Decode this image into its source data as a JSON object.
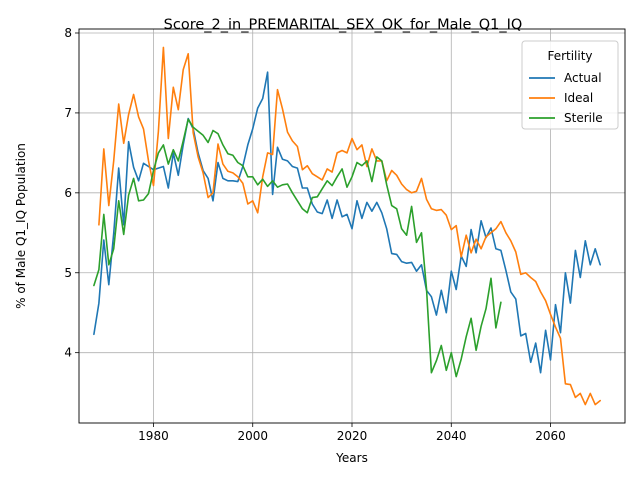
{
  "chart_data": {
    "type": "line",
    "title": "Score_2_in_PREMARITAL_SEX_OK_for_Male_Q1_IQ",
    "xlabel": "Years",
    "ylabel": "% of Male Q1_IQ Population",
    "xlim": [
      1965,
      2075
    ],
    "ylim": [
      3.12,
      8.05
    ],
    "xticks": [
      1980,
      2000,
      2020,
      2040,
      2060
    ],
    "yticks": [
      4,
      5,
      6,
      7,
      8
    ],
    "xtick_labels": [
      "1980",
      "2000",
      "2020",
      "2040",
      "2060"
    ],
    "ytick_labels": [
      "4",
      "5",
      "6",
      "7",
      "8"
    ],
    "grid": true,
    "legend": {
      "title": "Fertility",
      "placement": "top-right"
    },
    "series": [
      {
        "name": "Actual",
        "color": "#1f77b4",
        "points": [
          [
            1968,
            4.23
          ],
          [
            1969,
            4.62
          ],
          [
            1970,
            5.41
          ],
          [
            1971,
            4.85
          ],
          [
            1972,
            5.49
          ],
          [
            1973,
            6.31
          ],
          [
            1974,
            5.6
          ],
          [
            1975,
            6.64
          ],
          [
            1976,
            6.32
          ],
          [
            1977,
            6.15
          ],
          [
            1978,
            6.37
          ],
          [
            1979,
            6.33
          ],
          [
            1980,
            6.29
          ],
          [
            1981,
            6.31
          ],
          [
            1982,
            6.33
          ],
          [
            1983,
            6.06
          ],
          [
            1984,
            6.5
          ],
          [
            1985,
            6.22
          ],
          [
            1986,
            6.6
          ],
          [
            1987,
            6.93
          ],
          [
            1988,
            6.8
          ],
          [
            1989,
            6.5
          ],
          [
            1990,
            6.28
          ],
          [
            1991,
            6.18
          ],
          [
            1992,
            5.9
          ],
          [
            1993,
            6.38
          ],
          [
            1994,
            6.18
          ],
          [
            1995,
            6.15
          ],
          [
            1996,
            6.15
          ],
          [
            1997,
            6.14
          ],
          [
            1998,
            6.33
          ],
          [
            1999,
            6.6
          ],
          [
            2000,
            6.8
          ],
          [
            2001,
            7.06
          ],
          [
            2002,
            7.18
          ],
          [
            2003,
            7.51
          ],
          [
            2004,
            5.98
          ],
          [
            2005,
            6.57
          ],
          [
            2006,
            6.42
          ],
          [
            2007,
            6.4
          ],
          [
            2008,
            6.33
          ],
          [
            2009,
            6.31
          ],
          [
            2010,
            6.06
          ],
          [
            2011,
            6.06
          ],
          [
            2012,
            5.86
          ],
          [
            2013,
            5.76
          ],
          [
            2014,
            5.74
          ],
          [
            2015,
            5.91
          ],
          [
            2016,
            5.68
          ],
          [
            2017,
            5.91
          ],
          [
            2018,
            5.7
          ],
          [
            2019,
            5.73
          ],
          [
            2020,
            5.55
          ],
          [
            2021,
            5.9
          ],
          [
            2022,
            5.68
          ],
          [
            2023,
            5.88
          ],
          [
            2024,
            5.77
          ],
          [
            2025,
            5.88
          ],
          [
            2026,
            5.75
          ],
          [
            2027,
            5.55
          ],
          [
            2028,
            5.24
          ],
          [
            2029,
            5.23
          ],
          [
            2030,
            5.14
          ],
          [
            2031,
            5.12
          ],
          [
            2032,
            5.13
          ],
          [
            2033,
            5.02
          ],
          [
            2034,
            5.1
          ],
          [
            2035,
            4.78
          ],
          [
            2036,
            4.7
          ],
          [
            2037,
            4.47
          ],
          [
            2038,
            4.78
          ],
          [
            2039,
            4.5
          ],
          [
            2040,
            5.02
          ],
          [
            2041,
            4.79
          ],
          [
            2042,
            5.21
          ],
          [
            2043,
            5.08
          ],
          [
            2044,
            5.54
          ],
          [
            2045,
            5.25
          ],
          [
            2046,
            5.65
          ],
          [
            2047,
            5.44
          ],
          [
            2048,
            5.56
          ],
          [
            2049,
            5.3
          ],
          [
            2050,
            5.28
          ],
          [
            2051,
            5.03
          ],
          [
            2052,
            4.76
          ],
          [
            2053,
            4.67
          ],
          [
            2054,
            4.21
          ],
          [
            2055,
            4.24
          ],
          [
            2056,
            3.88
          ],
          [
            2057,
            4.12
          ],
          [
            2058,
            3.75
          ],
          [
            2059,
            4.28
          ],
          [
            2060,
            3.91
          ],
          [
            2061,
            4.6
          ],
          [
            2062,
            4.25
          ],
          [
            2063,
            5.0
          ],
          [
            2064,
            4.62
          ],
          [
            2065,
            5.28
          ],
          [
            2066,
            4.94
          ],
          [
            2067,
            5.4
          ],
          [
            2068,
            5.1
          ],
          [
            2069,
            5.3
          ],
          [
            2070,
            5.1
          ]
        ]
      },
      {
        "name": "Ideal",
        "color": "#ff7f0e",
        "points": [
          [
            1969,
            5.6
          ],
          [
            1970,
            6.55
          ],
          [
            1971,
            5.84
          ],
          [
            1972,
            6.4
          ],
          [
            1973,
            7.11
          ],
          [
            1974,
            6.62
          ],
          [
            1975,
            6.98
          ],
          [
            1976,
            7.23
          ],
          [
            1977,
            6.95
          ],
          [
            1978,
            6.8
          ],
          [
            1979,
            6.4
          ],
          [
            1980,
            6.09
          ],
          [
            1981,
            6.77
          ],
          [
            1982,
            7.82
          ],
          [
            1983,
            6.68
          ],
          [
            1984,
            7.32
          ],
          [
            1985,
            7.04
          ],
          [
            1986,
            7.54
          ],
          [
            1987,
            7.74
          ],
          [
            1988,
            6.75
          ],
          [
            1989,
            6.45
          ],
          [
            1990,
            6.25
          ],
          [
            1991,
            5.94
          ],
          [
            1992,
            6.0
          ],
          [
            1993,
            6.61
          ],
          [
            1994,
            6.36
          ],
          [
            1995,
            6.27
          ],
          [
            1996,
            6.25
          ],
          [
            1997,
            6.2
          ],
          [
            1998,
            6.12
          ],
          [
            1999,
            5.86
          ],
          [
            2000,
            5.9
          ],
          [
            2001,
            5.75
          ],
          [
            2002,
            6.2
          ],
          [
            2003,
            6.5
          ],
          [
            2004,
            6.48
          ],
          [
            2005,
            7.29
          ],
          [
            2006,
            7.05
          ],
          [
            2007,
            6.76
          ],
          [
            2008,
            6.65
          ],
          [
            2009,
            6.58
          ],
          [
            2010,
            6.29
          ],
          [
            2011,
            6.34
          ],
          [
            2012,
            6.24
          ],
          [
            2013,
            6.2
          ],
          [
            2014,
            6.16
          ],
          [
            2015,
            6.3
          ],
          [
            2016,
            6.26
          ],
          [
            2017,
            6.5
          ],
          [
            2018,
            6.53
          ],
          [
            2019,
            6.5
          ],
          [
            2020,
            6.68
          ],
          [
            2021,
            6.54
          ],
          [
            2022,
            6.6
          ],
          [
            2023,
            6.33
          ],
          [
            2024,
            6.55
          ],
          [
            2025,
            6.4
          ],
          [
            2026,
            6.4
          ],
          [
            2027,
            6.15
          ],
          [
            2028,
            6.28
          ],
          [
            2029,
            6.22
          ],
          [
            2030,
            6.11
          ],
          [
            2031,
            6.04
          ],
          [
            2032,
            6.0
          ],
          [
            2033,
            6.02
          ],
          [
            2034,
            6.18
          ],
          [
            2035,
            5.92
          ],
          [
            2036,
            5.8
          ],
          [
            2037,
            5.78
          ],
          [
            2038,
            5.79
          ],
          [
            2039,
            5.72
          ],
          [
            2040,
            5.54
          ],
          [
            2041,
            5.59
          ],
          [
            2042,
            5.2
          ],
          [
            2043,
            5.47
          ],
          [
            2044,
            5.25
          ],
          [
            2045,
            5.42
          ],
          [
            2046,
            5.3
          ],
          [
            2047,
            5.45
          ],
          [
            2048,
            5.5
          ],
          [
            2049,
            5.55
          ],
          [
            2050,
            5.64
          ],
          [
            2051,
            5.5
          ],
          [
            2052,
            5.4
          ],
          [
            2053,
            5.26
          ],
          [
            2054,
            4.98
          ],
          [
            2055,
            5.0
          ],
          [
            2056,
            4.94
          ],
          [
            2057,
            4.89
          ],
          [
            2058,
            4.76
          ],
          [
            2059,
            4.65
          ],
          [
            2060,
            4.48
          ],
          [
            2061,
            4.32
          ],
          [
            2062,
            4.18
          ],
          [
            2063,
            3.61
          ],
          [
            2064,
            3.6
          ],
          [
            2065,
            3.44
          ],
          [
            2066,
            3.49
          ],
          [
            2067,
            3.35
          ],
          [
            2068,
            3.49
          ],
          [
            2069,
            3.35
          ],
          [
            2070,
            3.4
          ]
        ]
      },
      {
        "name": "Sterile",
        "color": "#2ca02c",
        "points": [
          [
            1968,
            4.84
          ],
          [
            1969,
            5.04
          ],
          [
            1970,
            5.73
          ],
          [
            1971,
            5.1
          ],
          [
            1972,
            5.3
          ],
          [
            1973,
            5.9
          ],
          [
            1974,
            5.48
          ],
          [
            1975,
            5.97
          ],
          [
            1976,
            6.18
          ],
          [
            1977,
            5.9
          ],
          [
            1978,
            5.91
          ],
          [
            1979,
            5.99
          ],
          [
            1980,
            6.28
          ],
          [
            1981,
            6.5
          ],
          [
            1982,
            6.6
          ],
          [
            1983,
            6.36
          ],
          [
            1984,
            6.54
          ],
          [
            1985,
            6.4
          ],
          [
            1986,
            6.65
          ],
          [
            1987,
            6.92
          ],
          [
            1988,
            6.82
          ],
          [
            1989,
            6.77
          ],
          [
            1990,
            6.72
          ],
          [
            1991,
            6.63
          ],
          [
            1992,
            6.78
          ],
          [
            1993,
            6.74
          ],
          [
            1994,
            6.6
          ],
          [
            1995,
            6.49
          ],
          [
            1996,
            6.47
          ],
          [
            1997,
            6.38
          ],
          [
            1998,
            6.34
          ],
          [
            1999,
            6.2
          ],
          [
            2000,
            6.2
          ],
          [
            2001,
            6.1
          ],
          [
            2002,
            6.17
          ],
          [
            2003,
            6.08
          ],
          [
            2004,
            6.15
          ],
          [
            2005,
            6.07
          ],
          [
            2006,
            6.1
          ],
          [
            2007,
            6.11
          ],
          [
            2008,
            6.0
          ],
          [
            2009,
            5.9
          ],
          [
            2010,
            5.8
          ],
          [
            2011,
            5.75
          ],
          [
            2012,
            5.94
          ],
          [
            2013,
            5.95
          ],
          [
            2014,
            6.05
          ],
          [
            2015,
            6.15
          ],
          [
            2016,
            6.09
          ],
          [
            2017,
            6.2
          ],
          [
            2018,
            6.3
          ],
          [
            2019,
            6.07
          ],
          [
            2020,
            6.2
          ],
          [
            2021,
            6.38
          ],
          [
            2022,
            6.34
          ],
          [
            2023,
            6.4
          ],
          [
            2024,
            6.14
          ],
          [
            2025,
            6.45
          ],
          [
            2026,
            6.4
          ],
          [
            2027,
            6.1
          ],
          [
            2028,
            5.84
          ],
          [
            2029,
            5.8
          ],
          [
            2030,
            5.55
          ],
          [
            2031,
            5.47
          ],
          [
            2032,
            5.83
          ],
          [
            2033,
            5.38
          ],
          [
            2034,
            5.5
          ],
          [
            2035,
            4.8
          ],
          [
            2036,
            3.75
          ],
          [
            2037,
            3.9
          ],
          [
            2038,
            4.09
          ],
          [
            2039,
            3.78
          ],
          [
            2040,
            4.0
          ],
          [
            2041,
            3.7
          ],
          [
            2042,
            3.92
          ],
          [
            2043,
            4.2
          ],
          [
            2044,
            4.43
          ],
          [
            2045,
            4.03
          ],
          [
            2046,
            4.33
          ],
          [
            2047,
            4.55
          ],
          [
            2048,
            4.93
          ],
          [
            2049,
            4.31
          ],
          [
            2050,
            4.63
          ]
        ]
      }
    ]
  }
}
